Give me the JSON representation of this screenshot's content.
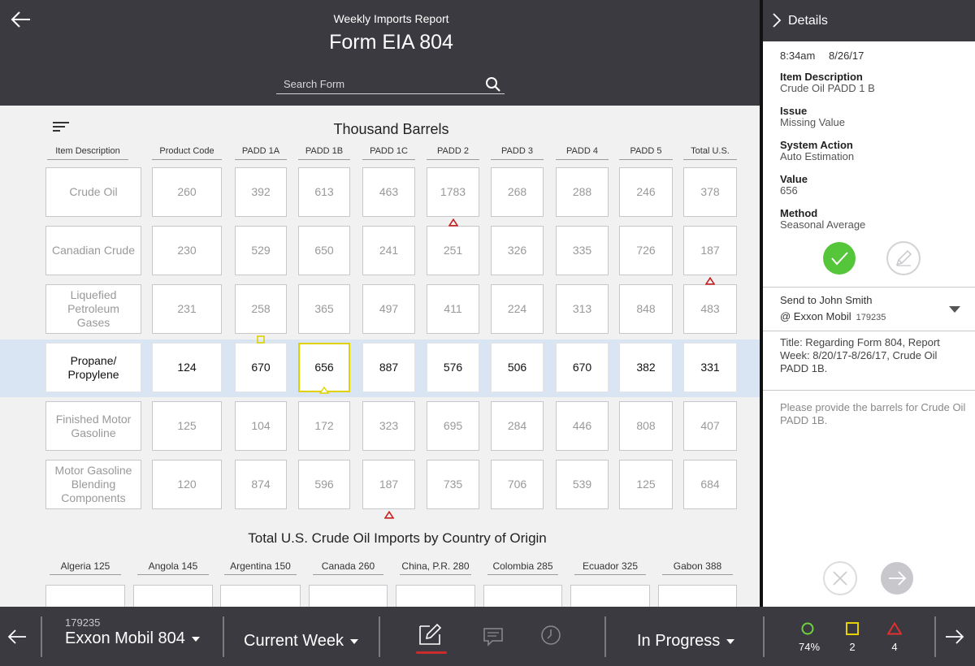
{
  "header": {
    "subtitle": "Weekly Imports Report",
    "title": "Form EIA 804",
    "search_placeholder": "Search Form"
  },
  "table": {
    "title": "Thousand Barrels",
    "columns": [
      "Item Description",
      "Product Code",
      "PADD 1A",
      "PADD 1B",
      "PADD 1C",
      "PADD 2",
      "PADD 3",
      "PADD 4",
      "PADD 5",
      "Total U.S."
    ],
    "rows": [
      {
        "description": "Crude Oil",
        "values": [
          "260",
          "392",
          "613",
          "463",
          "1783",
          "268",
          "288",
          "246",
          "378"
        ]
      },
      {
        "description": "Canadian Crude",
        "values": [
          "230",
          "529",
          "650",
          "241",
          "251",
          "326",
          "335",
          "726",
          "187"
        ]
      },
      {
        "description": "Liquefied Petroleum Gases",
        "values": [
          "231",
          "258",
          "365",
          "497",
          "411",
          "224",
          "313",
          "848",
          "483"
        ]
      },
      {
        "description": "Propane/ Propylene",
        "values": [
          "124",
          "670",
          "656",
          "887",
          "576",
          "506",
          "670",
          "382",
          "331"
        ],
        "active": true
      },
      {
        "description": "Finished Motor Gasoline",
        "values": [
          "125",
          "104",
          "172",
          "323",
          "695",
          "284",
          "446",
          "808",
          "407"
        ]
      },
      {
        "description": "Motor Gasoline Blending Components",
        "values": [
          "120",
          "874",
          "596",
          "187",
          "735",
          "706",
          "539",
          "125",
          "684"
        ]
      }
    ],
    "flags": [
      {
        "row": 0,
        "col": 5,
        "type": "error"
      },
      {
        "row": 1,
        "col": 9,
        "type": "error"
      },
      {
        "row": 2,
        "col": 2,
        "type": "warning"
      },
      {
        "row": 3,
        "col": 3,
        "type": "selected"
      },
      {
        "row": 5,
        "col": 4,
        "type": "error"
      }
    ],
    "selected_cell": {
      "row": 3,
      "col": 3
    }
  },
  "origin": {
    "title": "Total U.S. Crude Oil Imports by Country of Origin",
    "countries": [
      "Algeria 125",
      "Angola 145",
      "Argentina 150",
      "Canada 260",
      "China, P.R. 280",
      "Colombia 285",
      "Ecuador 325",
      "Gabon 388"
    ]
  },
  "details": {
    "title": "Details",
    "time": "8:34am",
    "date": "8/26/17",
    "fields": [
      {
        "label": "Item Description",
        "value": "Crude Oil PADD 1 B"
      },
      {
        "label": "Issue",
        "value": "Missing Value"
      },
      {
        "label": "System Action",
        "value": "Auto Estimation"
      },
      {
        "label": "Value",
        "value": "656"
      },
      {
        "label": "Method",
        "value": "Seasonal Average"
      }
    ],
    "send_to": "Send to John Smith",
    "send_org": "@ Exxon Mobil",
    "send_id": "179235",
    "message_title": "Title: Regarding Form 804, Report Week: 8/20/17-8/26/17, Crude Oil PADD 1B.",
    "message_body": "Please provide the barrels for Crude Oil PADD 1B."
  },
  "bottom": {
    "company_id": "179235",
    "company_name": "Exxon Mobil 804",
    "week": "Current Week",
    "status": "In Progress",
    "stats": [
      {
        "shape": "circle",
        "color": "#6fd13c",
        "value": "74%"
      },
      {
        "shape": "square",
        "color": "#e6d200",
        "value": "2"
      },
      {
        "shape": "triangle",
        "color": "#e03030",
        "value": "4"
      }
    ]
  },
  "colors": {
    "header_bg": "#3b3a41",
    "row_highlight": "#d9e5f3",
    "selected_border": "#e0d200",
    "error": "#c82020",
    "approve": "#55c53a",
    "accent_red": "#cc2b2b"
  }
}
